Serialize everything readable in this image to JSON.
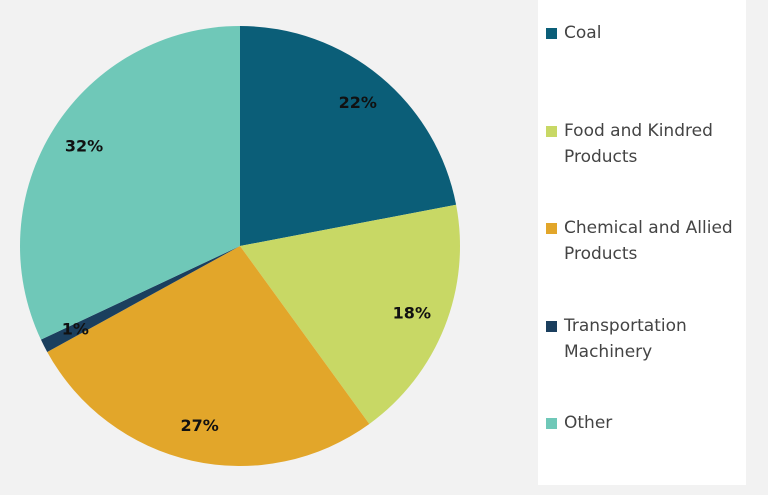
{
  "chart_data": {
    "type": "pie",
    "categories": [
      "Coal",
      "Food and Kindred Products",
      "Chemical and Allied Products",
      "Transportation Machinery",
      "Other"
    ],
    "values": [
      22,
      18,
      27,
      1,
      32
    ],
    "value_labels": [
      "22%",
      "18%",
      "27%",
      "1%",
      "32%"
    ],
    "colors": [
      "#0b5e78",
      "#c8d865",
      "#e2a62a",
      "#1b3f5e",
      "#6fc8b8"
    ],
    "legend": "right"
  }
}
